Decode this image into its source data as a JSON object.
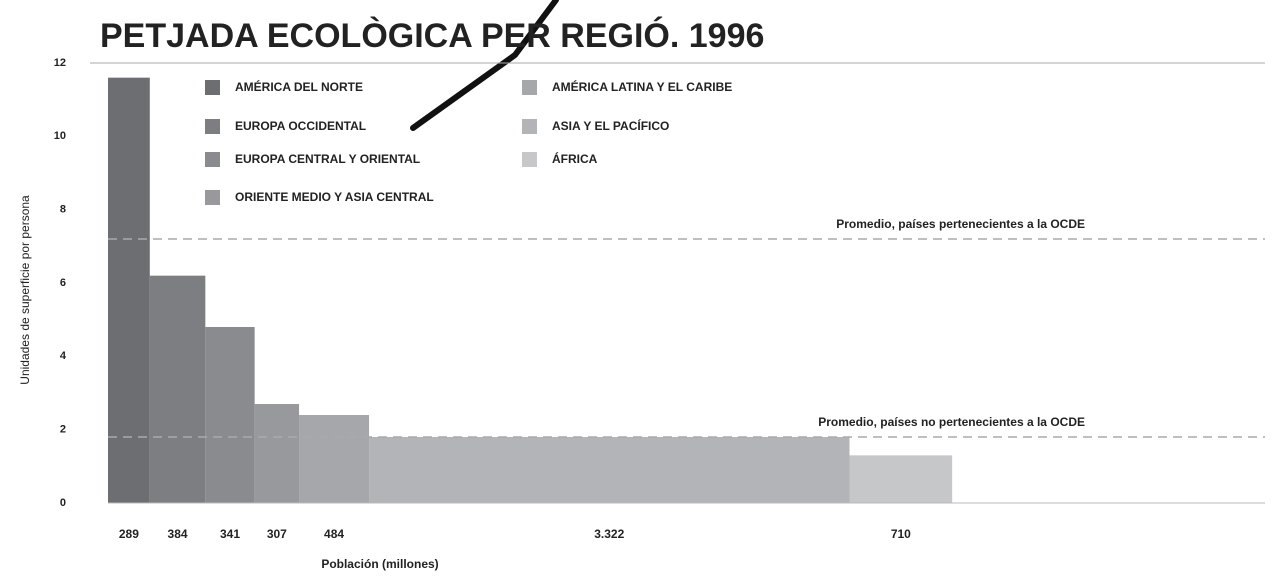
{
  "chart_data": {
    "type": "variable-width-bar",
    "title": "PETJADA ECOLÒGICA PER REGIÓ. 1996",
    "y_label": "Unidades de superficie por persona",
    "x_label": "Población (millones)",
    "categories": [
      "AMÉRICA DEL NORTE",
      "EUROPA OCCIDENTAL",
      "EUROPA CENTRAL Y ORIENTAL",
      "ORIENTE MEDIO Y ASIA CENTRAL",
      "AMÉRICA LATINA Y EL CARIBE",
      "ASIA Y EL PACÍFICO",
      "ÁFRICA"
    ],
    "values": [
      11.6,
      6.2,
      4.8,
      2.7,
      2.4,
      1.8,
      1.3
    ],
    "population": [
      289,
      384,
      341,
      307,
      484,
      3322,
      710
    ],
    "population_labels": [
      "289",
      "384",
      "341",
      "307",
      "484",
      "3.322",
      "710"
    ],
    "colors": [
      "#6d6e71",
      "#7d7e81",
      "#8a8b8e",
      "#98999c",
      "#a6a7aa",
      "#b3b4b7",
      "#c6c7c9"
    ],
    "xlim": [
      0,
      8000
    ],
    "ylim": [
      0,
      12
    ],
    "yticks": [
      0,
      2,
      4,
      6,
      8,
      10,
      12
    ],
    "reference_lines": [
      {
        "value": 7.2,
        "label": "Promedio, países pertenecientes a la OCDE"
      },
      {
        "value": 1.8,
        "label": "Promedio, países no pertenecientes a la OCDE"
      }
    ]
  }
}
